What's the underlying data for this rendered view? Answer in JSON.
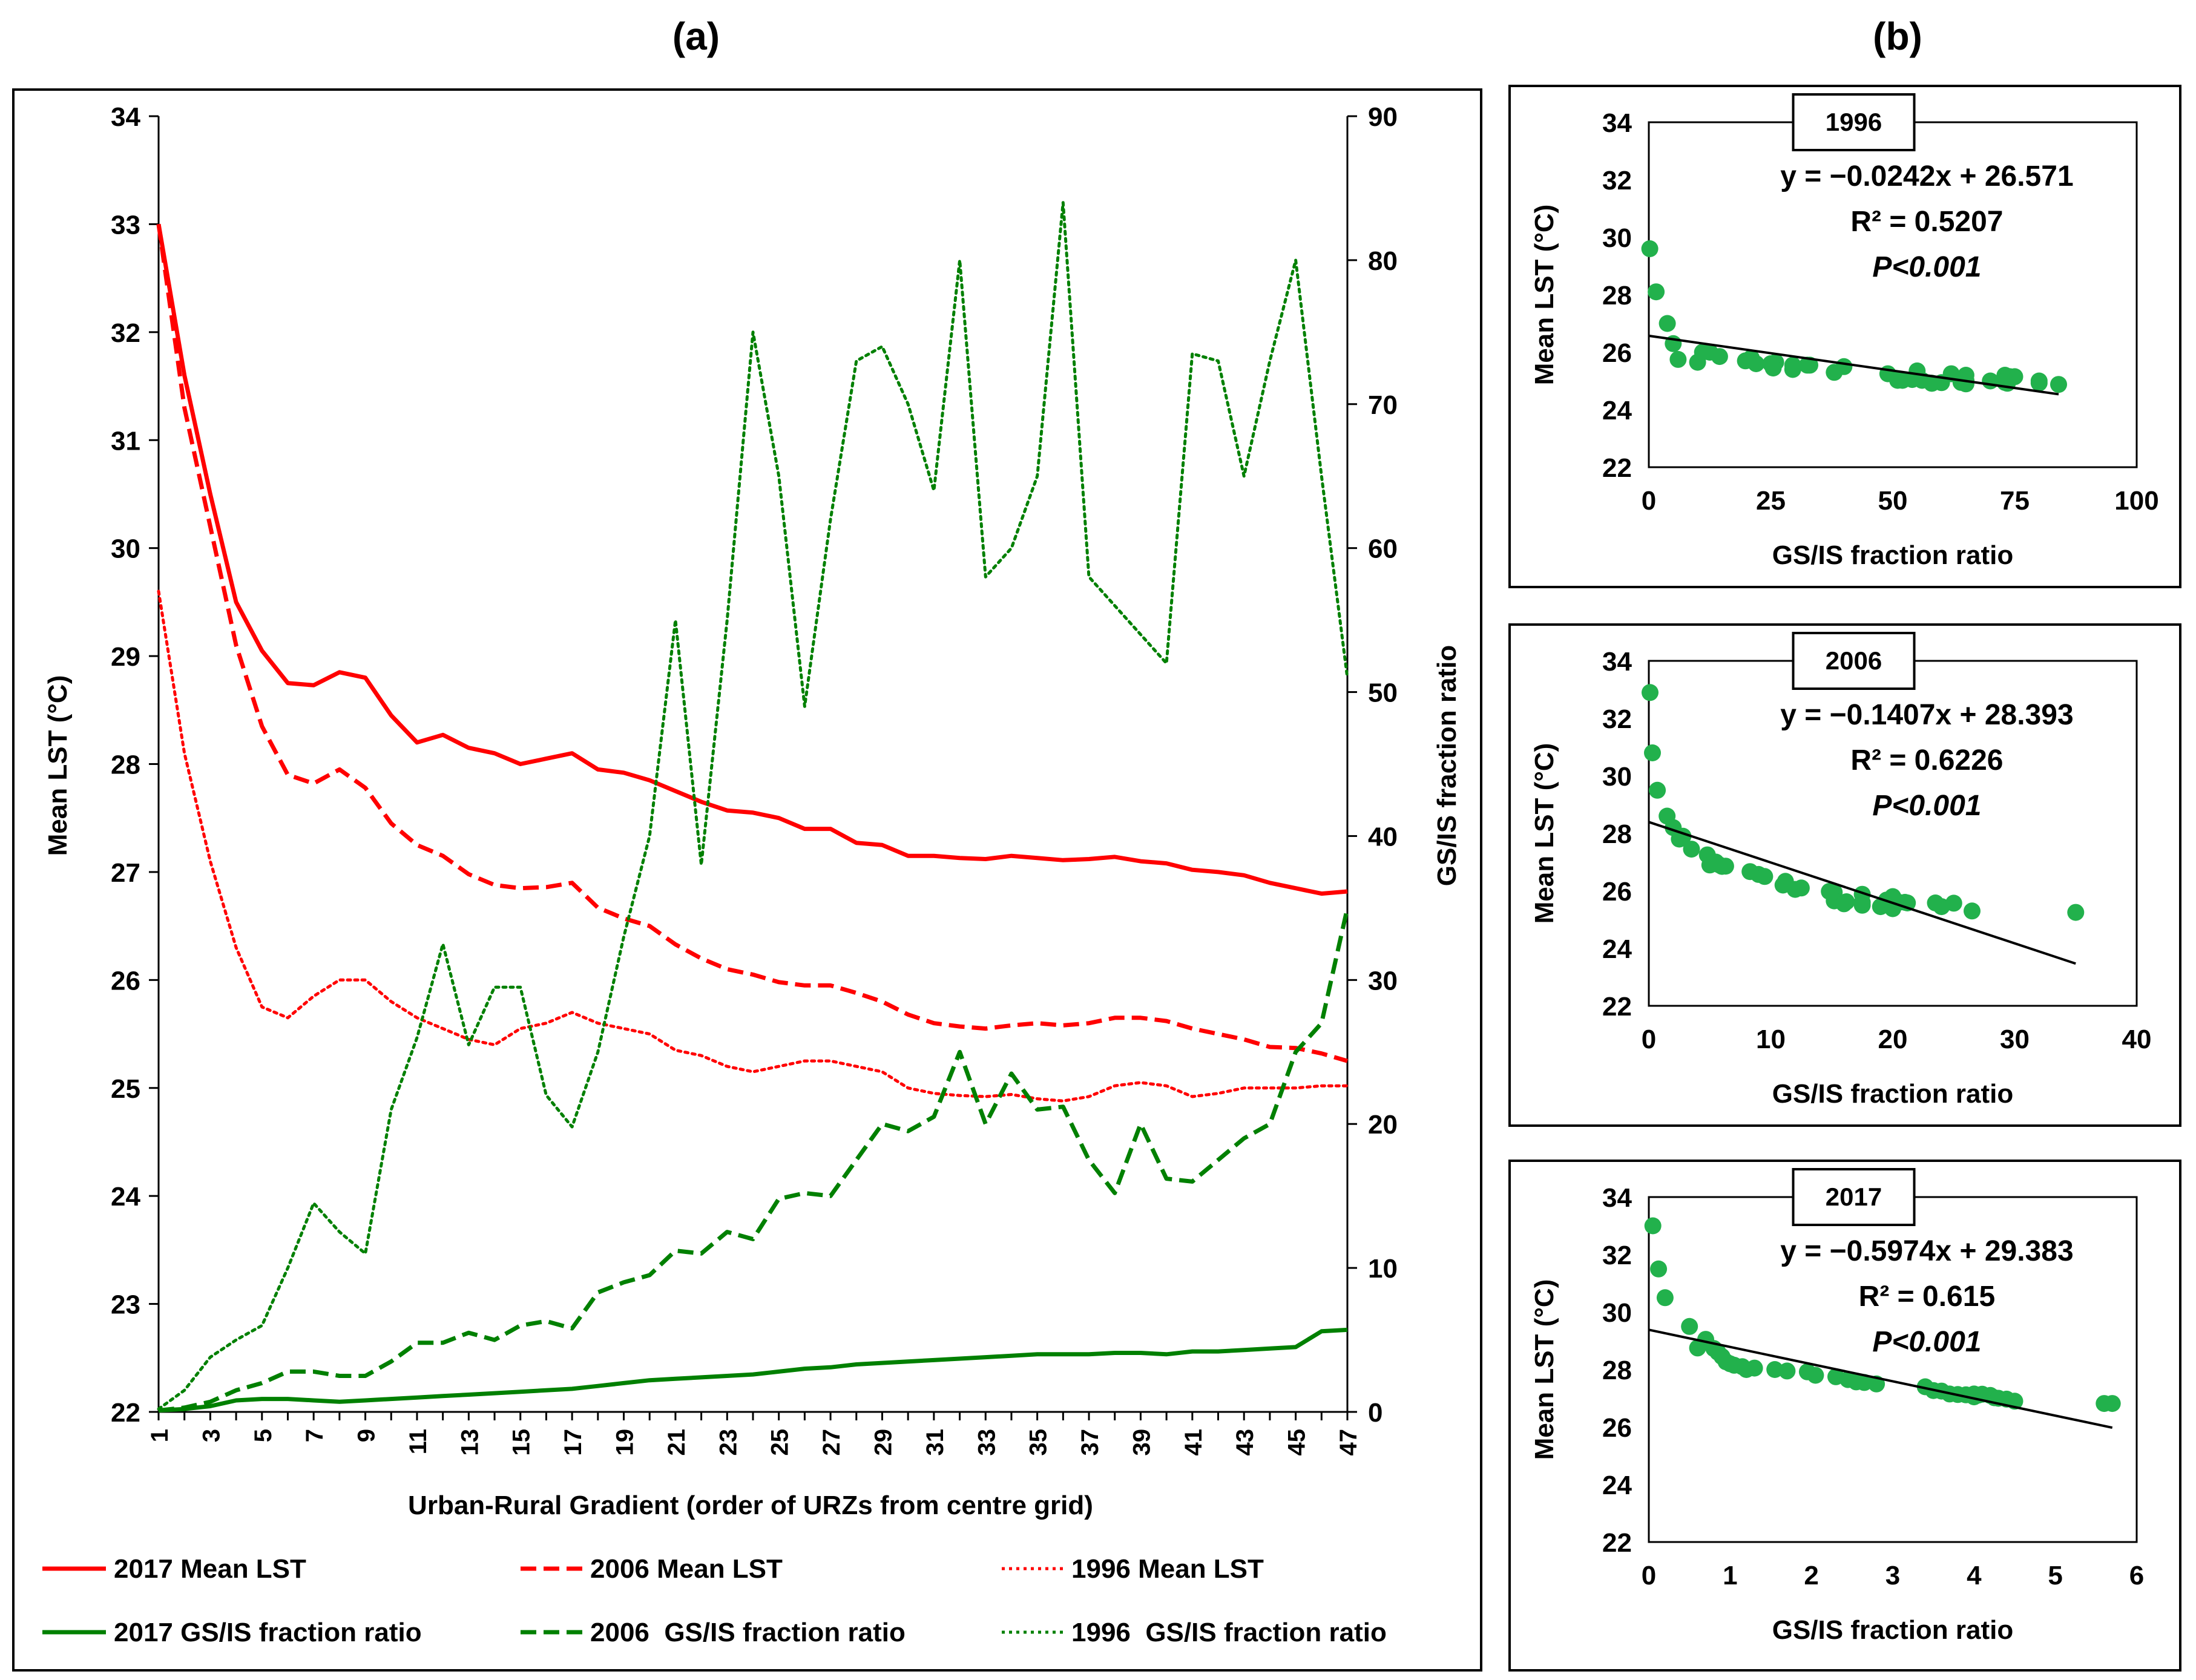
{
  "panel_a": {
    "label": "(a)",
    "chart_data": {
      "type": "line",
      "xlabel": "Urban-Rural Gradient (order of URZs from centre grid)",
      "ylabel_left": "Mean LST (°C)",
      "ylabel_right": "GS/IS fraction ratio",
      "x": [
        1,
        2,
        3,
        4,
        5,
        6,
        7,
        8,
        9,
        10,
        11,
        12,
        13,
        14,
        15,
        16,
        17,
        18,
        19,
        20,
        21,
        22,
        23,
        24,
        25,
        26,
        27,
        28,
        29,
        30,
        31,
        32,
        33,
        34,
        35,
        36,
        37,
        38,
        39,
        40,
        41,
        42,
        43,
        44,
        45,
        46,
        47
      ],
      "x_ticks": [
        1,
        3,
        5,
        7,
        9,
        11,
        13,
        15,
        17,
        19,
        21,
        23,
        25,
        27,
        29,
        31,
        33,
        35,
        37,
        39,
        41,
        43,
        45,
        47
      ],
      "ylim_left": [
        22,
        34
      ],
      "yticks_left": [
        22,
        23,
        24,
        25,
        26,
        27,
        28,
        29,
        30,
        31,
        32,
        33,
        34
      ],
      "ylim_right": [
        0,
        90
      ],
      "yticks_right": [
        0,
        10,
        20,
        30,
        40,
        50,
        60,
        70,
        80,
        90
      ],
      "grid": false,
      "legend_placement": "bottom",
      "series": [
        {
          "name": "2017 Mean LST",
          "axis": "left",
          "color": "#ff0000",
          "style": "solid",
          "values": [
            33.0,
            31.6,
            30.5,
            29.5,
            29.05,
            28.75,
            28.73,
            28.85,
            28.8,
            28.45,
            28.2,
            28.27,
            28.15,
            28.1,
            28.0,
            28.05,
            28.1,
            27.95,
            27.92,
            27.85,
            27.75,
            27.65,
            27.57,
            27.55,
            27.5,
            27.4,
            27.4,
            27.27,
            27.25,
            27.15,
            27.15,
            27.13,
            27.12,
            27.15,
            27.13,
            27.11,
            27.12,
            27.14,
            27.1,
            27.08,
            27.02,
            27.0,
            26.97,
            26.9,
            26.85,
            26.8,
            26.82
          ]
        },
        {
          "name": "2006 Mean LST",
          "axis": "left",
          "color": "#ff0000",
          "style": "dashed",
          "values": [
            33.0,
            31.3,
            30.2,
            29.1,
            28.35,
            27.9,
            27.82,
            27.95,
            27.78,
            27.45,
            27.25,
            27.15,
            26.98,
            26.88,
            26.85,
            26.86,
            26.9,
            26.67,
            26.57,
            26.5,
            26.33,
            26.2,
            26.1,
            26.05,
            25.98,
            25.95,
            25.95,
            25.88,
            25.8,
            25.68,
            25.6,
            25.57,
            25.55,
            25.58,
            25.6,
            25.58,
            25.6,
            25.65,
            25.65,
            25.62,
            25.55,
            25.5,
            25.45,
            25.38,
            25.37,
            25.32,
            25.25
          ]
        },
        {
          "name": "1996 Mean LST",
          "axis": "left",
          "color": "#ff0000",
          "style": "dotted",
          "values": [
            29.6,
            28.1,
            27.1,
            26.3,
            25.75,
            25.65,
            25.85,
            26.0,
            26.0,
            25.8,
            25.65,
            25.55,
            25.45,
            25.4,
            25.55,
            25.6,
            25.7,
            25.6,
            25.55,
            25.5,
            25.35,
            25.3,
            25.2,
            25.15,
            25.2,
            25.25,
            25.25,
            25.2,
            25.15,
            25.0,
            24.95,
            24.93,
            24.92,
            24.94,
            24.9,
            24.88,
            24.92,
            25.02,
            25.05,
            25.02,
            24.92,
            24.95,
            25.0,
            25.0,
            25.0,
            25.02,
            25.02
          ]
        },
        {
          "name": "2017 GS/IS fraction ratio",
          "axis": "right",
          "color": "#008000",
          "style": "solid",
          "values": [
            0.1,
            0.2,
            0.4,
            0.8,
            0.9,
            0.9,
            0.8,
            0.7,
            0.8,
            0.9,
            1.0,
            1.1,
            1.2,
            1.3,
            1.4,
            1.5,
            1.6,
            1.8,
            2.0,
            2.2,
            2.3,
            2.4,
            2.5,
            2.6,
            2.8,
            3.0,
            3.1,
            3.3,
            3.4,
            3.5,
            3.6,
            3.7,
            3.8,
            3.9,
            4.0,
            4.0,
            4.0,
            4.1,
            4.1,
            4.0,
            4.2,
            4.2,
            4.3,
            4.4,
            4.5,
            5.6,
            5.7
          ]
        },
        {
          "name": "2006 GS/IS fraction ratio",
          "axis": "right",
          "color": "#008000",
          "style": "dashed",
          "values": [
            0.1,
            0.3,
            0.7,
            1.5,
            2.0,
            2.8,
            2.8,
            2.5,
            2.5,
            3.5,
            4.8,
            4.8,
            5.5,
            5.0,
            6.0,
            6.3,
            5.8,
            8.3,
            9.0,
            9.5,
            11.2,
            11.0,
            12.5,
            12.0,
            14.8,
            15.2,
            15.0,
            17.5,
            20.0,
            19.5,
            20.5,
            25.0,
            20.0,
            23.5,
            21.0,
            21.2,
            17.5,
            15.2,
            20.0,
            16.2,
            16.0,
            17.5,
            19.0,
            20.0,
            25.0,
            27.0,
            35.0
          ]
        },
        {
          "name": "1996 GS/IS fraction ratio",
          "axis": "right",
          "color": "#008000",
          "style": "dotted",
          "values": [
            0.2,
            1.5,
            3.8,
            5.0,
            6.0,
            10.0,
            14.5,
            12.5,
            11.0,
            21.0,
            26.0,
            32.5,
            25.5,
            29.5,
            29.5,
            22.0,
            19.8,
            25.0,
            33.0,
            40.0,
            55.0,
            38.0,
            55.0,
            75.0,
            65.0,
            49.0,
            62.0,
            73.0,
            74.0,
            70.0,
            64.0,
            80.0,
            58.0,
            60.0,
            65.0,
            84.0,
            58.0,
            56.0,
            54.0,
            52.0,
            73.5,
            73.0,
            65.0,
            73.0,
            80.0,
            65.0,
            51.0
          ]
        }
      ],
      "legend": [
        [
          "2017 Mean LST",
          "2006 Mean LST",
          "1996 Mean LST"
        ],
        [
          "2017 GS/IS fraction ratio",
          "2006  GS/IS fraction ratio",
          "1996  GS/IS fraction ratio"
        ]
      ]
    }
  },
  "panel_b": {
    "label": "(b)",
    "chart_data": [
      {
        "type": "scatter",
        "year": "1996",
        "equation": "y = −0.0242x + 26.571",
        "r2": "R² = 0.5207",
        "p": "P<0.001",
        "xlabel": "GS/IS fraction ratio",
        "ylabel": "Mean LST (°C)",
        "xlim": [
          0,
          100
        ],
        "xticks": [
          0,
          25,
          50,
          75,
          100
        ],
        "ylim": [
          22,
          34
        ],
        "yticks": [
          22,
          24,
          26,
          28,
          30,
          32,
          34
        ],
        "trendline": {
          "slope": -0.0242,
          "intercept": 26.571,
          "x_range": [
            0,
            84
          ]
        },
        "point_color": "#22b14c",
        "points": [
          [
            0.2,
            29.6
          ],
          [
            1.5,
            28.1
          ],
          [
            3.8,
            27.0
          ],
          [
            5,
            26.3
          ],
          [
            6,
            25.75
          ],
          [
            10,
            25.65
          ],
          [
            14.5,
            25.85
          ],
          [
            12.5,
            26.0
          ],
          [
            11,
            26.0
          ],
          [
            21,
            25.8
          ],
          [
            26,
            25.65
          ],
          [
            32.5,
            25.55
          ],
          [
            25.5,
            25.45
          ],
          [
            29.5,
            25.4
          ],
          [
            29.5,
            25.55
          ],
          [
            22,
            25.6
          ],
          [
            19.8,
            25.7
          ],
          [
            25,
            25.6
          ],
          [
            33,
            25.55
          ],
          [
            40,
            25.5
          ],
          [
            55,
            25.35
          ],
          [
            38,
            25.3
          ],
          [
            55,
            25.2
          ],
          [
            75,
            25.15
          ],
          [
            65,
            25.2
          ],
          [
            49,
            25.25
          ],
          [
            62,
            25.25
          ],
          [
            73,
            25.2
          ],
          [
            74,
            25.15
          ],
          [
            70,
            25.0
          ],
          [
            64,
            24.95
          ],
          [
            80,
            24.93
          ],
          [
            58,
            24.92
          ],
          [
            60,
            24.94
          ],
          [
            65,
            24.9
          ],
          [
            84,
            24.88
          ],
          [
            58,
            24.92
          ],
          [
            56,
            25.02
          ],
          [
            54,
            25.05
          ],
          [
            52,
            25.02
          ],
          [
            73.5,
            24.92
          ],
          [
            73,
            24.95
          ],
          [
            65,
            25.0
          ],
          [
            73,
            25.0
          ],
          [
            80,
            25.0
          ],
          [
            65,
            25.02
          ],
          [
            51,
            25.02
          ]
        ]
      },
      {
        "type": "scatter",
        "year": "2006",
        "equation": "y = −0.1407x + 28.393",
        "r2": "R² = 0.6226",
        "p": "P<0.001",
        "xlabel": "GS/IS fraction ratio",
        "ylabel": "Mean LST (°C)",
        "xlim": [
          0,
          40
        ],
        "xticks": [
          0,
          10,
          20,
          30,
          40
        ],
        "ylim": [
          22,
          34
        ],
        "yticks": [
          22,
          24,
          26,
          28,
          30,
          32,
          34
        ],
        "trendline": {
          "slope": -0.1407,
          "intercept": 28.393,
          "x_range": [
            0,
            35
          ]
        },
        "point_color": "#22b14c",
        "points": [
          [
            0.1,
            32.9
          ],
          [
            0.3,
            30.8
          ],
          [
            0.7,
            29.5
          ],
          [
            1.5,
            28.6
          ],
          [
            2.0,
            28.2
          ],
          [
            2.8,
            27.9
          ],
          [
            2.5,
            27.8
          ],
          [
            3.5,
            27.45
          ],
          [
            4.8,
            27.25
          ],
          [
            5.5,
            27.0
          ],
          [
            5.0,
            26.9
          ],
          [
            6.0,
            26.85
          ],
          [
            6.3,
            26.86
          ],
          [
            5.8,
            26.9
          ],
          [
            8.3,
            26.67
          ],
          [
            9.0,
            26.57
          ],
          [
            9.5,
            26.5
          ],
          [
            11.2,
            26.33
          ],
          [
            11.0,
            26.2
          ],
          [
            12.5,
            26.1
          ],
          [
            12.0,
            26.05
          ],
          [
            14.8,
            25.98
          ],
          [
            15.2,
            25.95
          ],
          [
            15.0,
            25.95
          ],
          [
            17.5,
            25.88
          ],
          [
            20.0,
            25.8
          ],
          [
            19.5,
            25.68
          ],
          [
            20.5,
            25.6
          ],
          [
            25.0,
            25.57
          ],
          [
            20.0,
            25.55
          ],
          [
            23.5,
            25.58
          ],
          [
            21.0,
            25.6
          ],
          [
            21.2,
            25.58
          ],
          [
            17.5,
            25.6
          ],
          [
            15.2,
            25.65
          ],
          [
            20.0,
            25.65
          ],
          [
            16.2,
            25.62
          ],
          [
            16.0,
            25.55
          ],
          [
            17.5,
            25.5
          ],
          [
            19.0,
            25.45
          ],
          [
            20.0,
            25.38
          ],
          [
            26.5,
            25.3
          ],
          [
            24.0,
            25.45
          ],
          [
            35.0,
            25.25
          ]
        ]
      },
      {
        "type": "scatter",
        "year": "2017",
        "equation": "y = −0.5974x + 29.383",
        "r2": "R² = 0.615",
        "p": "P<0.001",
        "xlabel": "GS/IS fraction ratio",
        "ylabel": "Mean LST (°C)",
        "xlim": [
          0,
          6
        ],
        "xticks": [
          0,
          1,
          2,
          3,
          4,
          5,
          6
        ],
        "ylim": [
          22,
          34
        ],
        "yticks": [
          22,
          24,
          26,
          28,
          30,
          32,
          34
        ],
        "trendline": {
          "slope": -0.5974,
          "intercept": 29.383,
          "x_range": [
            0,
            5.7
          ]
        },
        "point_color": "#22b14c",
        "points": [
          [
            0.05,
            33.0
          ],
          [
            0.12,
            31.5
          ],
          [
            0.2,
            30.5
          ],
          [
            0.5,
            29.5
          ],
          [
            0.7,
            29.05
          ],
          [
            0.6,
            28.75
          ],
          [
            0.8,
            28.73
          ],
          [
            0.85,
            28.6
          ],
          [
            0.9,
            28.45
          ],
          [
            1.0,
            28.2
          ],
          [
            0.95,
            28.27
          ],
          [
            1.05,
            28.15
          ],
          [
            1.15,
            28.1
          ],
          [
            1.2,
            28.0
          ],
          [
            1.3,
            28.05
          ],
          [
            1.55,
            28.0
          ],
          [
            1.7,
            27.95
          ],
          [
            1.95,
            27.92
          ],
          [
            2.05,
            27.8
          ],
          [
            2.3,
            27.75
          ],
          [
            2.45,
            27.65
          ],
          [
            2.55,
            27.57
          ],
          [
            2.65,
            27.55
          ],
          [
            2.8,
            27.5
          ],
          [
            3.4,
            27.4
          ],
          [
            3.5,
            27.27
          ],
          [
            3.6,
            27.25
          ],
          [
            3.7,
            27.15
          ],
          [
            3.8,
            27.13
          ],
          [
            3.9,
            27.12
          ],
          [
            4.0,
            27.15
          ],
          [
            4.05,
            27.11
          ],
          [
            4.1,
            27.14
          ],
          [
            4.2,
            27.1
          ],
          [
            4.25,
            27.02
          ],
          [
            4.3,
            27.0
          ],
          [
            4.4,
            26.97
          ],
          [
            4.5,
            26.9
          ],
          [
            4.0,
            27.05
          ],
          [
            5.6,
            26.82
          ],
          [
            5.7,
            26.82
          ]
        ]
      }
    ]
  }
}
